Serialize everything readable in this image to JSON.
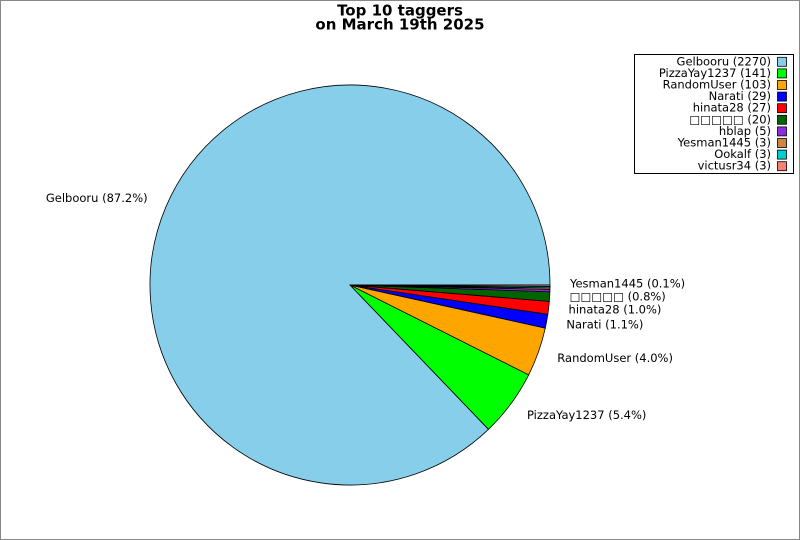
{
  "chart_data": {
    "type": "pie",
    "title": "Top 10 taggers",
    "subtitle": "on March 19th 2025",
    "categories": [
      "Gelbooru",
      "PizzaYay1237",
      "RandomUser",
      "Narati",
      "hinata28",
      "□□□□□",
      "hblap",
      "Yesman1445",
      "Ookalf",
      "victusr34"
    ],
    "values": [
      2270,
      141,
      103,
      29,
      27,
      20,
      5,
      3,
      3,
      3
    ],
    "value_labels": [
      "Gelbooru (87.2%)",
      "PizzaYay1237 (5.4%)",
      "RandomUser (4.0%)",
      "Narati (1.1%)",
      "hinata28 (1.0%)",
      "□□□□□ (0.8%)",
      null,
      "Yesman1445 (0.1%)",
      null,
      null
    ],
    "legend_labels": [
      "Gelbooru (2270)",
      "PizzaYay1237 (141)",
      "RandomUser (103)",
      "Narati (29)",
      "hinata28 (27)",
      "□□□□□ (20)",
      "hblap (5)",
      "Yesman1445 (3)",
      "Ookalf (3)",
      "victusr34 (3)"
    ],
    "colors": [
      "#87ceeb",
      "#00ff00",
      "#ffa500",
      "#0000ff",
      "#ff0000",
      "#006400",
      "#8a2be2",
      "#cd853f",
      "#00ced1",
      "#fa8072"
    ],
    "legend_position": "upper right"
  }
}
